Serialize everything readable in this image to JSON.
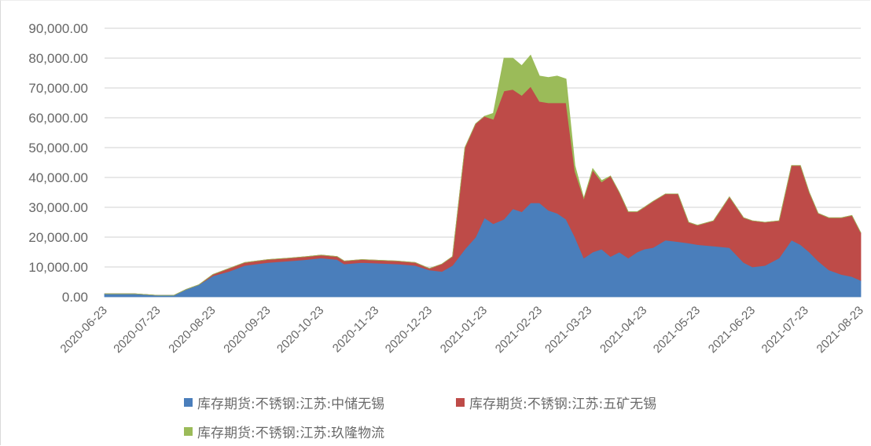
{
  "chart_data": {
    "type": "area",
    "stacked": true,
    "title": "",
    "xlabel": "",
    "ylabel": "",
    "ylim": [
      0,
      90000
    ],
    "yticks": [
      "90,000.00",
      "80,000.00",
      "70,000.00",
      "60,000.00",
      "50,000.00",
      "40,000.00",
      "30,000.00",
      "20,000.00",
      "10,000.00",
      "0.00"
    ],
    "xticks": [
      "2020-06-23",
      "2020-07-23",
      "2020-08-23",
      "2020-09-23",
      "2020-10-23",
      "2020-11-23",
      "2020-12-23",
      "2021-01-23",
      "2021-02-23",
      "2021-03-23",
      "2021-04-23",
      "2021-05-23",
      "2021-06-23",
      "2021-07-23",
      "2021-08-23"
    ],
    "grid": true,
    "legend_position": "bottom",
    "x": [
      "2020-06-23",
      "2020-07-01",
      "2020-07-10",
      "2020-07-23",
      "2020-08-01",
      "2020-08-08",
      "2020-08-15",
      "2020-08-23",
      "2020-09-01",
      "2020-09-10",
      "2020-09-23",
      "2020-10-05",
      "2020-10-15",
      "2020-10-23",
      "2020-11-01",
      "2020-11-05",
      "2020-11-15",
      "2020-11-23",
      "2020-12-05",
      "2020-12-15",
      "2020-12-23",
      "2020-12-30",
      "2021-01-05",
      "2021-01-12",
      "2021-01-18",
      "2021-01-23",
      "2021-01-28",
      "2021-02-03",
      "2021-02-08",
      "2021-02-13",
      "2021-02-18",
      "2021-02-23",
      "2021-02-28",
      "2021-03-05",
      "2021-03-10",
      "2021-03-15",
      "2021-03-20",
      "2021-03-25",
      "2021-03-30",
      "2021-04-04",
      "2021-04-09",
      "2021-04-14",
      "2021-04-19",
      "2021-04-23",
      "2021-04-28",
      "2021-05-05",
      "2021-05-12",
      "2021-05-18",
      "2021-05-23",
      "2021-06-01",
      "2021-06-10",
      "2021-06-18",
      "2021-06-23",
      "2021-06-30",
      "2021-07-08",
      "2021-07-15",
      "2021-07-20",
      "2021-07-25",
      "2021-07-30",
      "2021-08-05",
      "2021-08-12",
      "2021-08-18",
      "2021-08-23"
    ],
    "series": [
      {
        "name": "库存期货:不锈钢:江苏:中储无锡",
        "color": "#4a7ebb",
        "values": [
          1000,
          1000,
          1000,
          500,
          500,
          2500,
          4000,
          7000,
          8500,
          10500,
          11500,
          12000,
          12500,
          13000,
          12500,
          11000,
          11500,
          11300,
          11000,
          10500,
          9000,
          8500,
          10500,
          16000,
          20000,
          26500,
          24500,
          26000,
          29500,
          28500,
          31500,
          31500,
          29000,
          28000,
          26000,
          20000,
          13000,
          15000,
          16000,
          13500,
          15000,
          13000,
          15000,
          16000,
          16500,
          19000,
          18500,
          18000,
          17500,
          17000,
          16500,
          11500,
          10000,
          10500,
          13000,
          19000,
          17500,
          15000,
          12000,
          9000,
          7500,
          6800,
          5500
        ]
      },
      {
        "name": "库存期货:不锈钢:江苏:五矿无锡",
        "color": "#be4b48",
        "values": [
          0,
          0,
          0,
          0,
          0,
          0,
          0,
          500,
          1000,
          1000,
          1000,
          1000,
          1000,
          1000,
          1000,
          1000,
          1000,
          1000,
          1000,
          1000,
          500,
          2500,
          3000,
          34000,
          38000,
          34000,
          35000,
          43000,
          40000,
          39000,
          39000,
          34000,
          36000,
          37000,
          39000,
          22000,
          20000,
          27500,
          22500,
          27000,
          20000,
          15500,
          13500,
          14000,
          15500,
          15500,
          16000,
          7000,
          6500,
          8500,
          17000,
          15000,
          15500,
          14500,
          12500,
          25000,
          26500,
          20000,
          16000,
          17500,
          19000,
          20500,
          16000
        ]
      },
      {
        "name": "库存期货:不锈钢:江苏:玖隆物流",
        "color": "#9bbb59",
        "values": [
          0,
          0,
          0,
          0,
          0,
          0,
          0,
          0,
          0,
          0,
          0,
          0,
          0,
          0,
          0,
          0,
          0,
          0,
          0,
          0,
          0,
          0,
          0,
          0,
          0,
          0,
          2000,
          11000,
          10500,
          10000,
          10500,
          8500,
          8500,
          9000,
          8000,
          2000,
          0,
          500,
          500,
          0,
          0,
          0,
          0,
          0,
          0,
          0,
          0,
          0,
          0,
          0,
          0,
          0,
          0,
          0,
          0,
          0,
          0,
          0,
          0,
          0,
          0,
          0,
          0
        ]
      }
    ]
  },
  "legend": {
    "items": [
      {
        "label": "库存期货:不锈钢:江苏:中储无锡",
        "color": "#4a7ebb"
      },
      {
        "label": "库存期货:不锈钢:江苏:五矿无锡",
        "color": "#be4b48"
      },
      {
        "label": "库存期货:不锈钢:江苏:玖隆物流",
        "color": "#9bbb59"
      }
    ]
  }
}
